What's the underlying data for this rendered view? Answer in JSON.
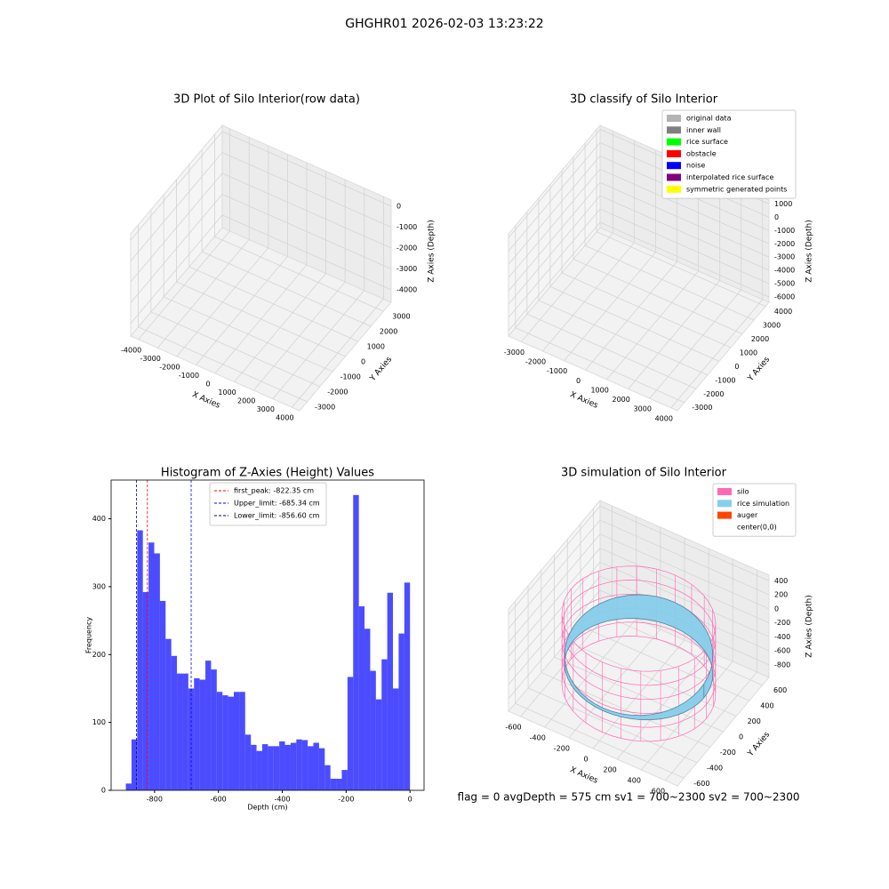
{
  "title": "GHGHR01 2026-02-03 13:23:22",
  "footer": "flag = 0     avgDepth = 575 cm  sv1 = 700~2300  sv2 = 700~2300",
  "chart_data": [
    {
      "type": "scatter3d",
      "title": "3D Plot of Silo Interior(row data)",
      "xlabel": "X Axies",
      "ylabel": "Y Axies",
      "zlabel": "Z Axies (Depth)",
      "xlim": [
        -4400,
        4400
      ],
      "ylim": [
        -3600,
        3600
      ],
      "zlim": [
        -4600,
        300
      ],
      "xticks": [
        -4000,
        -3000,
        -2000,
        -1000,
        0,
        1000,
        2000,
        3000,
        4000
      ],
      "yticks": [
        -3000,
        -2000,
        -1000,
        0,
        1000,
        2000,
        3000
      ],
      "zticks": [
        -4000,
        -3000,
        -2000,
        -1000,
        0
      ]
    },
    {
      "type": "scatter3d",
      "title": "3D classify of Silo Interior",
      "xlabel": "X Axies",
      "ylabel": "Y Axies",
      "zlabel": "Z Axies (Depth)",
      "xlim": [
        -3600,
        4300
      ],
      "ylim": [
        -3600,
        4300
      ],
      "zlim": [
        -6400,
        1300
      ],
      "xticks": [
        -3000,
        -2000,
        -1000,
        0,
        1000,
        2000,
        3000,
        4000
      ],
      "yticks": [
        -3000,
        -2000,
        -1000,
        0,
        1000,
        2000,
        3000,
        4000
      ],
      "zticks": [
        -6000,
        -5000,
        -4000,
        -3000,
        -2000,
        -1000,
        0,
        1000
      ],
      "legend": [
        {
          "name": "original data",
          "color": "#b3b3b3"
        },
        {
          "name": "inner wall",
          "color": "#808080"
        },
        {
          "name": "rice surface",
          "color": "#00ff00"
        },
        {
          "name": "obstacle",
          "color": "#ff0000"
        },
        {
          "name": "noise",
          "color": "#0000ff"
        },
        {
          "name": "interpolated rice surface",
          "color": "#800080"
        },
        {
          "name": "symmetric generated points",
          "color": "#ffff00"
        }
      ]
    },
    {
      "type": "histogram",
      "title": "Histogram of Z-Axies (Height) Values",
      "xlabel": "Depth (cm)",
      "ylabel": "Frequency",
      "color": "#0000ff",
      "xlim": [
        -936,
        44
      ],
      "ylim": [
        0,
        457
      ],
      "xticks": [
        -800,
        -600,
        -400,
        -200,
        0
      ],
      "yticks": [
        0,
        100,
        200,
        300,
        400
      ],
      "bins": [
        -890,
        -872.2,
        -854.4,
        -836.6,
        -818.8,
        -801,
        -783.2,
        -765.4,
        -747.6,
        -729.8,
        -712,
        -694.2,
        -676.4,
        -658.6,
        -640.8,
        -623,
        -605.2,
        -587.4,
        -569.6,
        -551.8,
        -534,
        -516.2,
        -498.4,
        -480.6,
        -462.8,
        -445,
        -427.2,
        -409.4,
        -391.6,
        -373.8,
        -356,
        -338.2,
        -320.4,
        -302.6,
        -284.8,
        -267,
        -249.2,
        -231.4,
        -213.6,
        -195.8,
        -178,
        -160.2,
        -142.4,
        -124.6,
        -106.8,
        -89,
        -71.2,
        -53.4,
        -35.6,
        -17.8,
        0
      ],
      "values": [
        10,
        75,
        383,
        292,
        365,
        349,
        279,
        223,
        198,
        172,
        172,
        150,
        165,
        163,
        191,
        178,
        145,
        140,
        138,
        145,
        145,
        82,
        67,
        58,
        68,
        65,
        65,
        72,
        67,
        70,
        75,
        74,
        65,
        70,
        62,
        37,
        17,
        17,
        30,
        167,
        435,
        271,
        238,
        176,
        134,
        193,
        291,
        150,
        231,
        306
      ],
      "vlines": [
        {
          "name": "first_peak: -822.35 cm",
          "value": -822.35,
          "color": "#ff0000"
        },
        {
          "name": "Upper_limit: -685.34 cm",
          "value": -685.34,
          "color": "#0000ff"
        },
        {
          "name": "Lower_limit: -856.60 cm",
          "value": -856.6,
          "color": "#00008b"
        }
      ]
    },
    {
      "type": "scatter3d",
      "title": "3D simulation of Silo Interior",
      "xlabel": "X Axies",
      "ylabel": "Y Axies",
      "zlabel": "Z Axies (Depth)",
      "xlim": [
        -700,
        700
      ],
      "ylim": [
        -700,
        700
      ],
      "zlim": [
        -980,
        480
      ],
      "xticks": [
        -600,
        -400,
        -200,
        0,
        200,
        400,
        600
      ],
      "yticks": [
        -600,
        -400,
        -200,
        0,
        200,
        400,
        600
      ],
      "zticks": [
        -800,
        -600,
        -400,
        -200,
        0,
        200,
        400
      ],
      "legend": [
        {
          "name": "silo",
          "color": "#ff69b4"
        },
        {
          "name": "rice simulation",
          "color": "#87ceeb"
        },
        {
          "name": "auger",
          "color": "#ff4500"
        },
        {
          "name": "center(0,0)",
          "color": "#ffffff"
        }
      ]
    }
  ]
}
